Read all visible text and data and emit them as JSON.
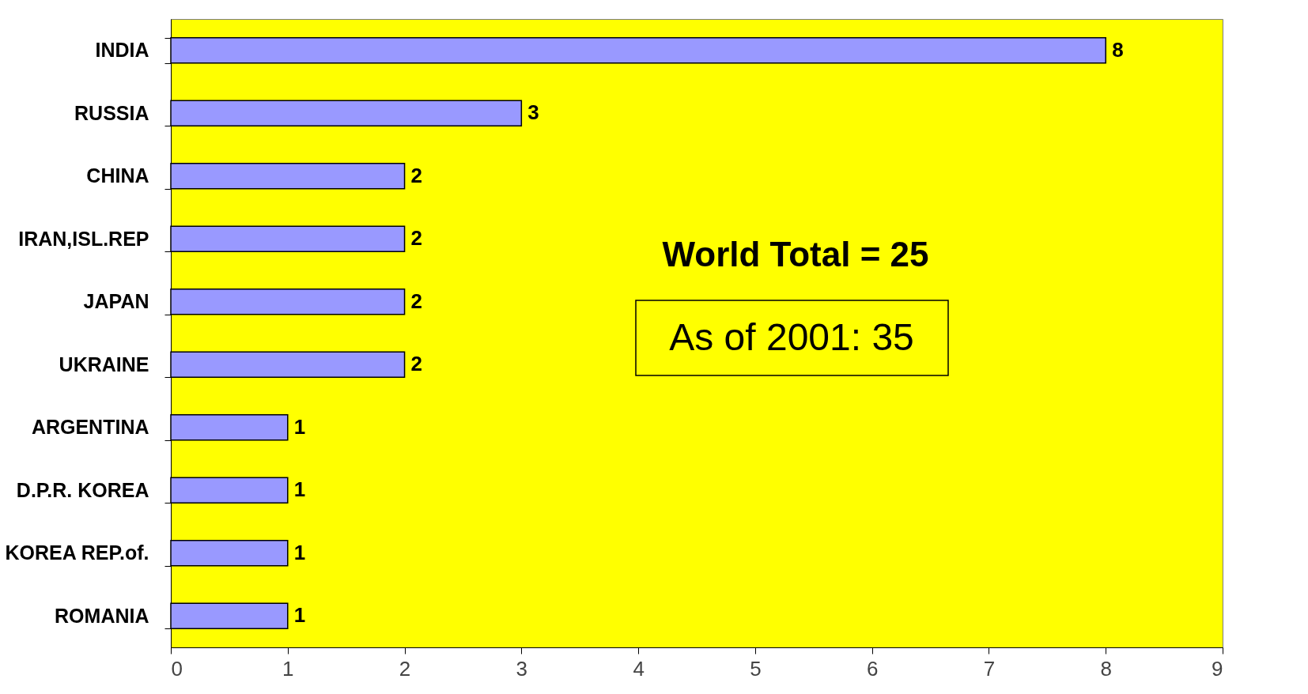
{
  "chart_data": {
    "type": "bar",
    "orientation": "horizontal",
    "categories": [
      "INDIA",
      "RUSSIA",
      "CHINA",
      "IRAN,ISL.REP",
      "JAPAN",
      "UKRAINE",
      "ARGENTINA",
      "D.P.R. KOREA",
      "KOREA REP.of.",
      "ROMANIA"
    ],
    "values": [
      8,
      3,
      2,
      2,
      2,
      2,
      1,
      1,
      1,
      1
    ],
    "color": "#9999ff",
    "xlim": [
      0,
      9
    ],
    "xticks": [
      0,
      1,
      2,
      3,
      4,
      5,
      6,
      7,
      8,
      9
    ],
    "data_labels": true,
    "annotations": [
      "World Total = 25",
      "As of 2001:  35"
    ]
  }
}
